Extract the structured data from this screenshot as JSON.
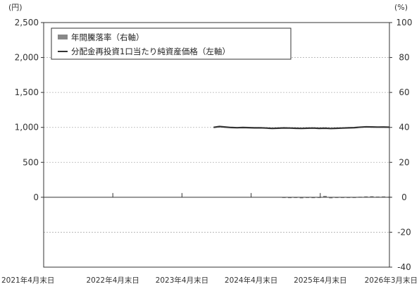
{
  "chart_data": {
    "type": "bar",
    "title": "",
    "left_axis": {
      "unit": "(円)",
      "ylim": [
        -1000,
        2500
      ],
      "ticks": [
        0,
        500,
        1000,
        1500,
        2000,
        2500
      ],
      "tick_labels": [
        "0",
        "500",
        "1,000",
        "1,500",
        "2,000",
        "2,500"
      ]
    },
    "right_axis": {
      "unit": "(%)",
      "ylim": [
        -40,
        100
      ],
      "ticks": [
        -40,
        -20,
        0,
        20,
        40,
        60,
        80,
        100
      ],
      "tick_labels": [
        "-40",
        "-20",
        "0",
        "20",
        "40",
        "60",
        "80",
        "100"
      ]
    },
    "x_ticks": [
      "2021年4月末日",
      "2022年4月末日",
      "2023年4月末日",
      "2024年4月末日",
      "2025年4月末日",
      "2026年3月末日"
    ],
    "x_range": [
      "2021-04",
      "2026-03"
    ],
    "grid": "horizontal dotted",
    "legend_placement": "top-left",
    "colors": {
      "bar": "#888888",
      "line": "#333333",
      "grid": "#b0b0b0"
    },
    "series": [
      {
        "name": "年間騰落率（右軸）",
        "type": "bar",
        "axis": "right",
        "points": [
          {
            "x": "2024-09",
            "y": -0.3
          },
          {
            "x": "2024-10",
            "y": -0.5
          },
          {
            "x": "2024-11",
            "y": -0.4
          },
          {
            "x": "2024-12",
            "y": -0.6
          },
          {
            "x": "2025-01",
            "y": -0.3
          },
          {
            "x": "2025-02",
            "y": -0.5
          },
          {
            "x": "2025-03",
            "y": -0.4
          },
          {
            "x": "2025-04",
            "y": 0.8
          },
          {
            "x": "2025-05",
            "y": -0.6
          },
          {
            "x": "2025-06",
            "y": -0.3
          },
          {
            "x": "2025-07",
            "y": -0.4
          },
          {
            "x": "2025-08",
            "y": -0.2
          },
          {
            "x": "2025-09",
            "y": -0.3
          },
          {
            "x": "2025-10",
            "y": 0.3
          },
          {
            "x": "2025-11",
            "y": 0.5
          },
          {
            "x": "2025-12",
            "y": 0.6
          },
          {
            "x": "2026-01",
            "y": 0.4
          },
          {
            "x": "2026-02",
            "y": 0.5
          },
          {
            "x": "2026-03",
            "y": 0.3
          }
        ]
      },
      {
        "name": "分配金再投資1口当たり純資産価格（左軸）",
        "type": "line",
        "axis": "left",
        "points": [
          {
            "x": "2023-09",
            "y": 1000
          },
          {
            "x": "2023-10",
            "y": 1012
          },
          {
            "x": "2023-11",
            "y": 1005
          },
          {
            "x": "2023-12",
            "y": 998
          },
          {
            "x": "2024-01",
            "y": 995
          },
          {
            "x": "2024-02",
            "y": 998
          },
          {
            "x": "2024-03",
            "y": 996
          },
          {
            "x": "2024-04",
            "y": 993
          },
          {
            "x": "2024-05",
            "y": 994
          },
          {
            "x": "2024-06",
            "y": 990
          },
          {
            "x": "2024-07",
            "y": 985
          },
          {
            "x": "2024-08",
            "y": 988
          },
          {
            "x": "2024-09",
            "y": 992
          },
          {
            "x": "2024-10",
            "y": 990
          },
          {
            "x": "2024-11",
            "y": 987
          },
          {
            "x": "2024-12",
            "y": 985
          },
          {
            "x": "2025-01",
            "y": 988
          },
          {
            "x": "2025-02",
            "y": 990
          },
          {
            "x": "2025-03",
            "y": 986
          },
          {
            "x": "2025-04",
            "y": 988
          },
          {
            "x": "2025-05",
            "y": 984
          },
          {
            "x": "2025-06",
            "y": 987
          },
          {
            "x": "2025-07",
            "y": 990
          },
          {
            "x": "2025-08",
            "y": 993
          },
          {
            "x": "2025-09",
            "y": 996
          },
          {
            "x": "2025-10",
            "y": 1003
          },
          {
            "x": "2025-11",
            "y": 1008
          },
          {
            "x": "2025-12",
            "y": 1006
          },
          {
            "x": "2026-01",
            "y": 1004
          },
          {
            "x": "2026-02",
            "y": 1005
          },
          {
            "x": "2026-03",
            "y": 1003
          }
        ]
      }
    ]
  }
}
